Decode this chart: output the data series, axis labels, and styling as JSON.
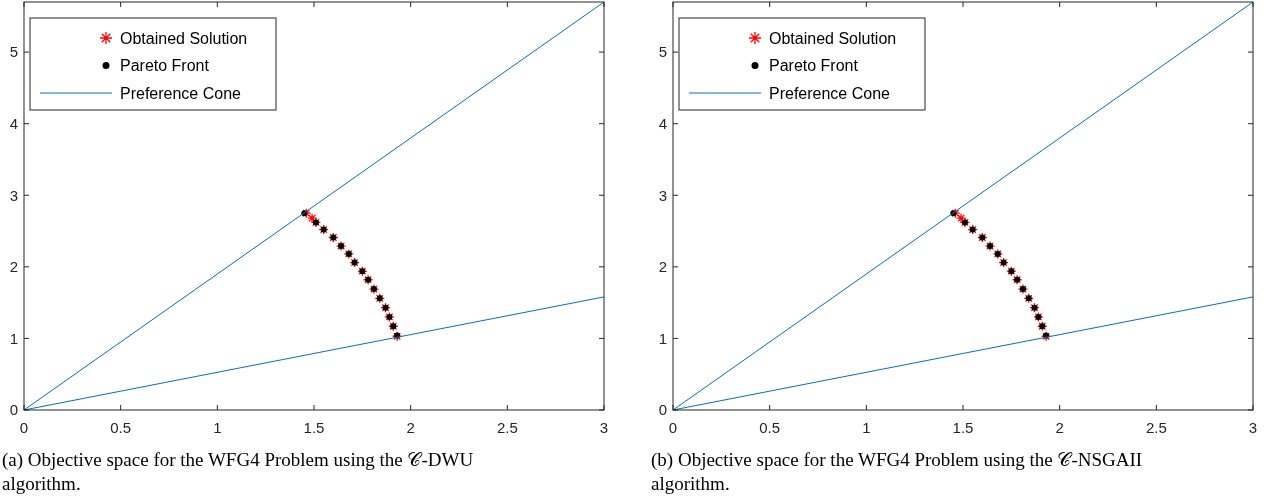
{
  "chart_data": [
    {
      "type": "scatter",
      "xlim": [
        0,
        3
      ],
      "ylim": [
        0,
        5.7
      ],
      "xticks": [
        0,
        0.5,
        1,
        1.5,
        2,
        2.5,
        3
      ],
      "yticks": [
        0,
        1,
        2,
        3,
        4,
        5
      ],
      "legend": "top left",
      "grid": false,
      "annotations": [
        "(a) Objective space for the WFG4 Problem using the 𝒞-DWU algorithm."
      ],
      "series": [
        {
          "name": "Obtained Solution",
          "marker": "cross",
          "color": "#ff0000",
          "x": [
            1.46,
            1.49,
            1.51,
            1.55,
            1.6,
            1.64,
            1.68,
            1.71,
            1.75,
            1.78,
            1.81,
            1.84,
            1.87,
            1.89,
            1.91,
            1.93
          ],
          "values": [
            2.75,
            2.68,
            2.62,
            2.52,
            2.41,
            2.29,
            2.18,
            2.06,
            1.94,
            1.82,
            1.69,
            1.56,
            1.43,
            1.3,
            1.17,
            1.03
          ]
        },
        {
          "name": "Pareto Front",
          "marker": "circle",
          "color": "#000000",
          "x": [
            1.45,
            1.51,
            1.55,
            1.6,
            1.64,
            1.68,
            1.71,
            1.75,
            1.78,
            1.81,
            1.84,
            1.87,
            1.89,
            1.91,
            1.93
          ],
          "values": [
            2.75,
            2.62,
            2.52,
            2.41,
            2.29,
            2.18,
            2.06,
            1.94,
            1.82,
            1.69,
            1.56,
            1.43,
            1.3,
            1.17,
            1.04
          ]
        },
        {
          "name": "Preference Cone",
          "type": "line",
          "color": "#0072bd",
          "x": [
            0,
            3
          ],
          "values": [
            0,
            5.7
          ]
        },
        {
          "type": "line",
          "color": "#0072bd",
          "x": [
            0,
            3
          ],
          "values": [
            0,
            1.58
          ]
        }
      ]
    },
    {
      "type": "scatter",
      "xlim": [
        0,
        3
      ],
      "ylim": [
        0,
        5.7
      ],
      "xticks": [
        0,
        0.5,
        1,
        1.5,
        2,
        2.5,
        3
      ],
      "yticks": [
        0,
        1,
        2,
        3,
        4,
        5
      ],
      "legend": "top left",
      "grid": false,
      "annotations": [
        "(b) Objective space for the WFG4 Problem using the 𝒞-NSGAII algorithm."
      ],
      "series": [
        {
          "name": "Obtained Solution",
          "marker": "cross",
          "color": "#ff0000",
          "x": [
            1.46,
            1.49,
            1.51,
            1.55,
            1.6,
            1.64,
            1.68,
            1.71,
            1.75,
            1.78,
            1.81,
            1.84,
            1.87,
            1.89,
            1.91,
            1.93
          ],
          "values": [
            2.75,
            2.68,
            2.62,
            2.52,
            2.41,
            2.29,
            2.18,
            2.06,
            1.94,
            1.82,
            1.69,
            1.56,
            1.43,
            1.3,
            1.17,
            1.03
          ]
        },
        {
          "name": "Pareto Front",
          "marker": "circle",
          "color": "#000000",
          "x": [
            1.45,
            1.51,
            1.55,
            1.6,
            1.64,
            1.68,
            1.71,
            1.75,
            1.78,
            1.81,
            1.84,
            1.87,
            1.89,
            1.91,
            1.93
          ],
          "values": [
            2.75,
            2.62,
            2.52,
            2.41,
            2.29,
            2.18,
            2.06,
            1.94,
            1.82,
            1.69,
            1.56,
            1.43,
            1.3,
            1.17,
            1.04
          ]
        },
        {
          "name": "Preference Cone",
          "type": "line",
          "color": "#0072bd",
          "x": [
            0,
            3
          ],
          "values": [
            0,
            5.7
          ]
        },
        {
          "type": "line",
          "color": "#0072bd",
          "x": [
            0,
            3
          ],
          "values": [
            0,
            1.58
          ]
        }
      ]
    }
  ]
}
